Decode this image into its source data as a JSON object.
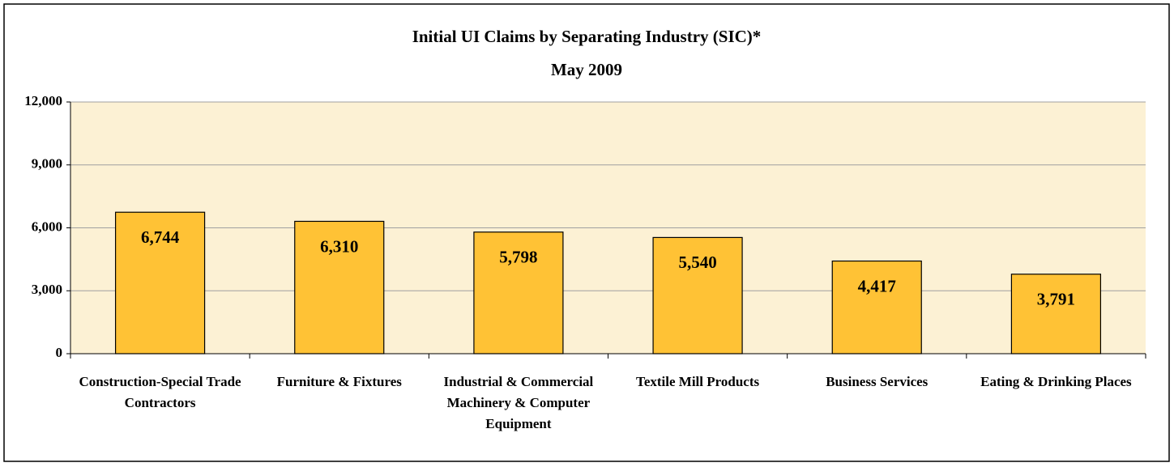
{
  "chart_data": {
    "type": "bar",
    "title": "Initial UI Claims by Separating Industry (SIC)*",
    "subtitle": "May 2009",
    "categories": [
      "Construction-Special Trade Contractors",
      "Furniture & Fixtures",
      "Industrial & Commercial Machinery & Computer Equipment",
      "Textile Mill Products",
      "Business Services",
      "Eating & Drinking Places"
    ],
    "values": [
      6744,
      6310,
      5798,
      5540,
      4417,
      3791
    ],
    "value_labels": [
      "6,744",
      "6,310",
      "5,798",
      "5,540",
      "4,417",
      "3,791"
    ],
    "color": "#ffc235",
    "ylim": [
      0,
      12000
    ],
    "yticks": [
      0,
      {
        "value": 3000,
        "label": "3,000"
      },
      {
        "value": 6000,
        "label": "6,000"
      },
      {
        "value": 9000,
        "label": "9,000"
      },
      {
        "value": 12000,
        "label": "12,000"
      }
    ],
    "grid": true
  }
}
